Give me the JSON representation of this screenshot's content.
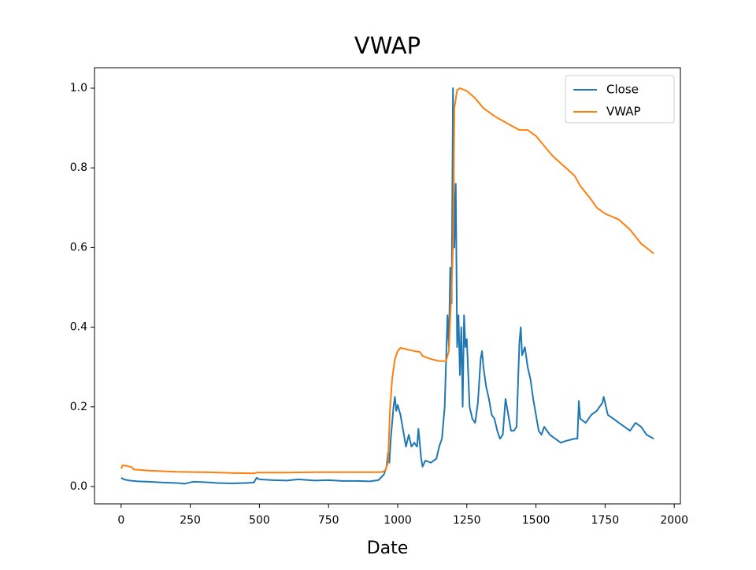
{
  "chart_data": {
    "type": "line",
    "title": "VWAP",
    "x_label": "Date",
    "xlim": [
      -96.3,
      2022.3
    ],
    "ylim": [
      -0.0435,
      1.0514
    ],
    "xticks": [
      0,
      250,
      500,
      750,
      1000,
      1250,
      1500,
      1750,
      2000
    ],
    "yticks": [
      {
        "value": 0,
        "label": "0.0"
      },
      {
        "value": 0.2,
        "label": "0.2"
      },
      {
        "value": 0.4,
        "label": "0.4"
      },
      {
        "value": 0.6,
        "label": "0.6"
      },
      {
        "value": 0.8,
        "label": "0.8"
      },
      {
        "value": 1,
        "label": "1.0"
      }
    ],
    "legend": "upper right",
    "series": [
      {
        "name": "Close",
        "color": "#1f77b4",
        "x": [
          0,
          10,
          30,
          60,
          100,
          150,
          200,
          230,
          260,
          300,
          350,
          400,
          450,
          480,
          490,
          500,
          550,
          600,
          640,
          700,
          750,
          800,
          850,
          900,
          930,
          950,
          960,
          965,
          970,
          975,
          985,
          990,
          995,
          1000,
          1010,
          1020,
          1030,
          1040,
          1050,
          1060,
          1070,
          1075,
          1085,
          1090,
          1100,
          1120,
          1140,
          1150,
          1160,
          1170,
          1180,
          1185,
          1190,
          1195,
          1200,
          1205,
          1210,
          1215,
          1220,
          1225,
          1230,
          1235,
          1240,
          1245,
          1250,
          1260,
          1270,
          1280,
          1290,
          1300,
          1305,
          1310,
          1320,
          1330,
          1340,
          1350,
          1360,
          1370,
          1380,
          1390,
          1400,
          1410,
          1420,
          1430,
          1440,
          1445,
          1450,
          1460,
          1470,
          1480,
          1490,
          1500,
          1510,
          1520,
          1530,
          1550,
          1570,
          1590,
          1610,
          1640,
          1650,
          1655,
          1660,
          1680,
          1700,
          1720,
          1740,
          1745,
          1760,
          1780,
          1800,
          1820,
          1840,
          1860,
          1880,
          1900,
          1926
        ],
        "values": [
          0.022,
          0.018,
          0.015,
          0.013,
          0.012,
          0.01,
          0.009,
          0.007,
          0.012,
          0.011,
          0.009,
          0.008,
          0.009,
          0.01,
          0.022,
          0.018,
          0.016,
          0.015,
          0.018,
          0.015,
          0.016,
          0.014,
          0.014,
          0.013,
          0.016,
          0.03,
          0.05,
          0.085,
          0.06,
          0.12,
          0.2,
          0.225,
          0.19,
          0.205,
          0.18,
          0.14,
          0.1,
          0.13,
          0.1,
          0.11,
          0.1,
          0.145,
          0.07,
          0.05,
          0.065,
          0.06,
          0.07,
          0.1,
          0.12,
          0.2,
          0.43,
          0.35,
          0.55,
          0.46,
          1.0,
          0.6,
          0.76,
          0.35,
          0.43,
          0.28,
          0.4,
          0.2,
          0.43,
          0.35,
          0.37,
          0.2,
          0.17,
          0.16,
          0.21,
          0.32,
          0.34,
          0.3,
          0.25,
          0.22,
          0.18,
          0.17,
          0.14,
          0.12,
          0.13,
          0.22,
          0.18,
          0.14,
          0.14,
          0.15,
          0.36,
          0.4,
          0.33,
          0.35,
          0.3,
          0.27,
          0.22,
          0.18,
          0.14,
          0.13,
          0.15,
          0.13,
          0.12,
          0.11,
          0.115,
          0.12,
          0.12,
          0.215,
          0.17,
          0.16,
          0.18,
          0.19,
          0.21,
          0.225,
          0.18,
          0.17,
          0.16,
          0.15,
          0.14,
          0.16,
          0.15,
          0.13,
          0.12
        ]
      },
      {
        "name": "VWAP",
        "color": "#ff7f0e",
        "x": [
          0,
          5,
          20,
          40,
          45,
          100,
          200,
          300,
          400,
          480,
          490,
          600,
          700,
          800,
          900,
          940,
          955,
          965,
          972,
          980,
          990,
          1000,
          1010,
          1030,
          1060,
          1080,
          1090,
          1120,
          1150,
          1175,
          1185,
          1195,
          1200,
          1205,
          1215,
          1225,
          1250,
          1280,
          1310,
          1350,
          1400,
          1440,
          1470,
          1500,
          1530,
          1560,
          1600,
          1640,
          1660,
          1700,
          1720,
          1750,
          1800,
          1840,
          1880,
          1926
        ],
        "values": [
          0.045,
          0.053,
          0.052,
          0.048,
          0.043,
          0.04,
          0.037,
          0.036,
          0.034,
          0.033,
          0.035,
          0.035,
          0.036,
          0.036,
          0.036,
          0.036,
          0.04,
          0.06,
          0.19,
          0.27,
          0.32,
          0.34,
          0.348,
          0.345,
          0.34,
          0.338,
          0.328,
          0.32,
          0.315,
          0.315,
          0.34,
          0.5,
          0.6,
          0.95,
          0.995,
          1.0,
          0.993,
          0.975,
          0.95,
          0.93,
          0.91,
          0.895,
          0.895,
          0.88,
          0.855,
          0.83,
          0.805,
          0.78,
          0.755,
          0.72,
          0.7,
          0.685,
          0.67,
          0.645,
          0.61,
          0.585
        ]
      }
    ]
  }
}
